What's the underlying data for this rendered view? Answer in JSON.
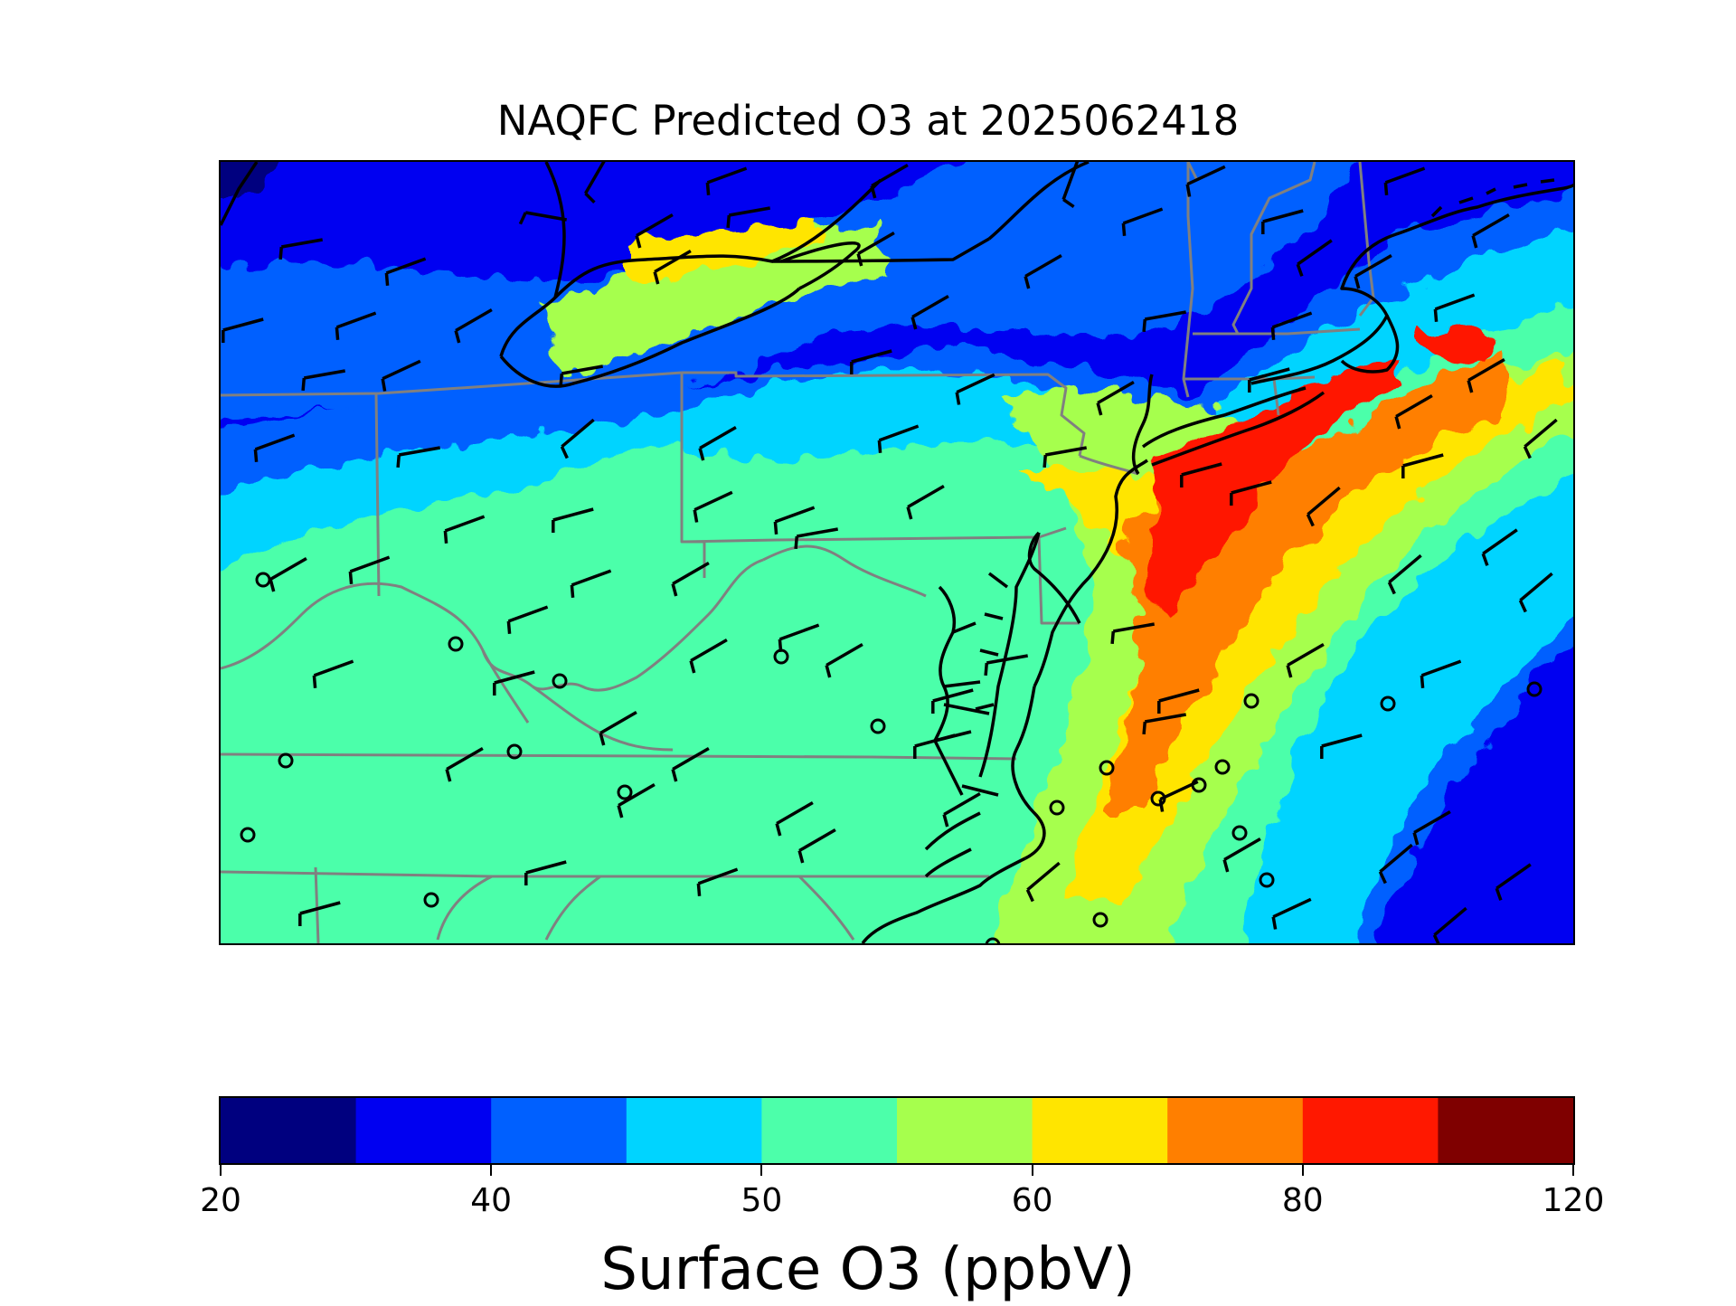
{
  "title": "NAQFC Predicted O3 at 2025062418",
  "colorbar": {
    "label": "Surface O3 (ppbV)",
    "levels": [
      20,
      25,
      30,
      35,
      40,
      45,
      50,
      55,
      60,
      70,
      80,
      120
    ],
    "tick_labels": [
      "20",
      "40",
      "50",
      "60",
      "80",
      "120"
    ],
    "colors": [
      "#00007f",
      "#0000f1",
      "#0060ff",
      "#00d4ff",
      "#4cffaa",
      "#a6ff4d",
      "#ffe500",
      "#ff7f00",
      "#ff1800",
      "#7f0000"
    ]
  },
  "map": {
    "field_name": "Surface O3",
    "units": "ppbV",
    "lon_range": [
      -86.5,
      -68.5
    ],
    "lat_range": [
      33.5,
      44.5
    ],
    "overlays": [
      "state-borders",
      "coastlines",
      "wind-barbs",
      "calm-wind-circles"
    ]
  }
}
